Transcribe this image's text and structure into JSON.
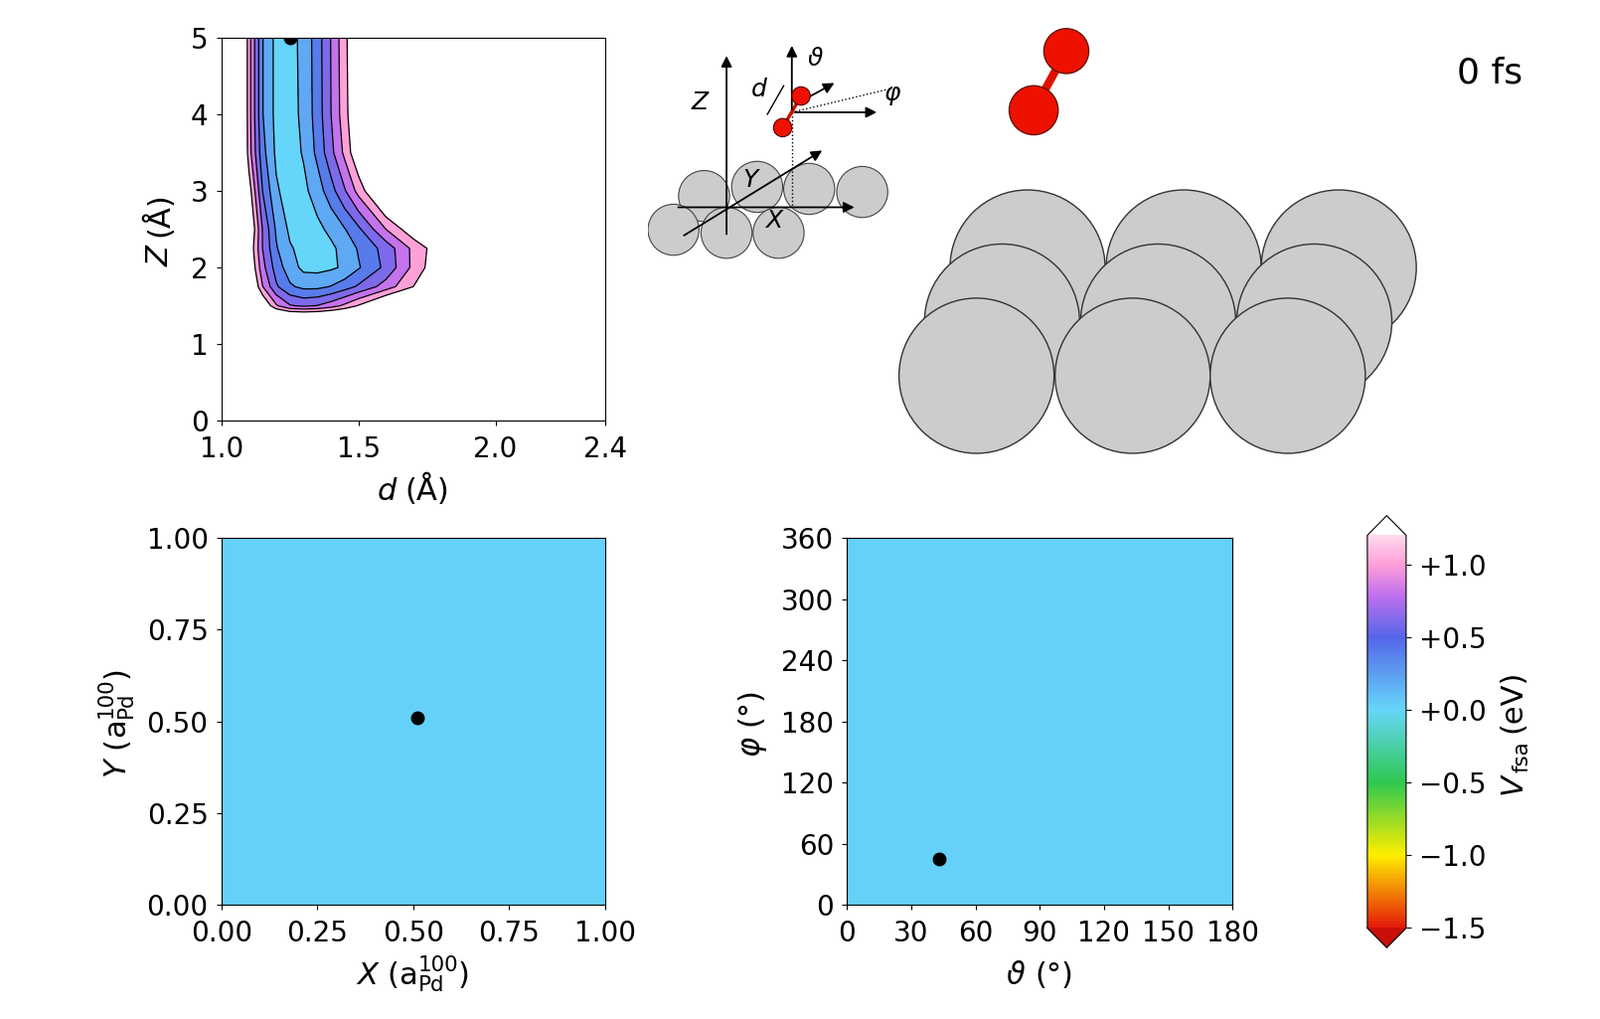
{
  "chart_data": [
    {
      "type": "contour",
      "x": [
        1.0,
        1.05,
        1.1,
        1.15,
        1.2,
        1.25,
        1.3,
        1.35,
        1.4,
        1.45,
        1.5,
        1.6,
        1.7,
        1.8,
        2.4
      ],
      "y": [
        0,
        1.0,
        1.25,
        1.5,
        1.75,
        2.0,
        2.25,
        2.5,
        3.0,
        3.5,
        4.0,
        5.0
      ],
      "values": [
        [
          2.0,
          2.0,
          2.0,
          2.0,
          2.0,
          2.0,
          2.0,
          2.0,
          2.0,
          2.0,
          2.0,
          2.0,
          2.0,
          2.0,
          2.0
        ],
        [
          2.0,
          2.0,
          2.0,
          2.0,
          2.0,
          2.0,
          2.0,
          2.0,
          2.0,
          2.0,
          2.0,
          2.0,
          2.0,
          2.0,
          2.0
        ],
        [
          2.0,
          2.0,
          2.0,
          2.0,
          2.0,
          2.0,
          2.0,
          2.0,
          2.0,
          2.0,
          2.0,
          2.0,
          2.0,
          2.0,
          2.0
        ],
        [
          2.0,
          2.0,
          2.0,
          1.35,
          0.93,
          0.72,
          0.67,
          0.71,
          0.81,
          0.95,
          1.12,
          1.47,
          1.8,
          2.0,
          2.0
        ],
        [
          2.0,
          2.0,
          1.51,
          0.91,
          0.53,
          0.33,
          0.25,
          0.25,
          0.31,
          0.41,
          0.53,
          0.79,
          1.1,
          1.4,
          2.0
        ],
        [
          2.0,
          2.0,
          1.37,
          0.77,
          0.41,
          0.19,
          0.05,
          0.04,
          0.07,
          0.13,
          0.28,
          0.55,
          0.95,
          1.3,
          2.0
        ],
        [
          2.0,
          2.0,
          1.3,
          0.7,
          0.32,
          0.12,
          0.04,
          0.02,
          0.06,
          0.17,
          0.32,
          0.58,
          0.95,
          1.25,
          2.0
        ],
        [
          2.0,
          2.0,
          1.4,
          0.69,
          0.27,
          0.06,
          0.01,
          0.05,
          0.15,
          0.29,
          0.46,
          0.9,
          1.25,
          1.6,
          2.0
        ],
        [
          2.0,
          2.0,
          1.22,
          0.5,
          0.13,
          0.0,
          0.05,
          0.2,
          0.42,
          0.68,
          0.97,
          1.52,
          2.0,
          2.0,
          2.0
        ],
        [
          2.0,
          2.0,
          1.0,
          0.37,
          0.06,
          0.01,
          0.12,
          0.35,
          0.64,
          0.95,
          1.3,
          1.95,
          2.0,
          2.0,
          2.0
        ],
        [
          2.0,
          2.0,
          0.99,
          0.31,
          0.04,
          0.02,
          0.15,
          0.39,
          0.7,
          1.02,
          1.37,
          2.0,
          2.0,
          2.0,
          2.0
        ],
        [
          2.0,
          2.0,
          0.99,
          0.31,
          0.04,
          0.03,
          0.16,
          0.4,
          0.71,
          1.04,
          1.39,
          2.0,
          2.0,
          2.0,
          2.0
        ]
      ],
      "levels": [
        -0.1,
        0.1,
        0.3,
        0.5,
        0.7,
        0.9,
        1.1
      ],
      "xlim": [
        1.0,
        2.4
      ],
      "ylim": [
        0,
        5
      ],
      "xticks": [
        1.0,
        1.5,
        2.0,
        2.4
      ],
      "yticks": [
        0,
        1,
        2,
        3,
        4,
        5
      ],
      "xlabel": [
        {
          "text": "d"
        },
        {
          "text": "(Å)"
        }
      ],
      "ylabel": [
        {
          "text": "Z"
        },
        {
          "text": "(Å)"
        }
      ],
      "point": {
        "x": 1.25,
        "y": 5.0
      }
    },
    {
      "type": "heatmap",
      "x": [
        0,
        1
      ],
      "y": [
        0,
        1
      ],
      "values": [
        [
          0.02,
          0.02
        ],
        [
          0.02,
          0.02
        ]
      ],
      "xlim": [
        0,
        1
      ],
      "ylim": [
        0,
        1
      ],
      "xticks": [
        {
          "value": 0,
          "label": "0.00"
        },
        {
          "value": 0.25,
          "label": "0.25"
        },
        {
          "value": 0.5,
          "label": "0.50"
        },
        {
          "value": 0.75,
          "label": "0.75"
        },
        {
          "value": 1,
          "label": "1.00"
        }
      ],
      "yticks": [
        {
          "value": 0,
          "label": "0.00"
        },
        {
          "value": 0.25,
          "label": "0.25"
        },
        {
          "value": 0.5,
          "label": "0.50"
        },
        {
          "value": 0.75,
          "label": "0.75"
        },
        {
          "value": 1,
          "label": "1.00"
        }
      ],
      "xlabel": [
        {
          "text": "X"
        },
        {
          "text": "("
        },
        {
          "text": "a",
          "sub": "Pd",
          "sup": "100"
        },
        {
          "text": ")"
        }
      ],
      "ylabel": [
        {
          "text": "Y"
        },
        {
          "text": "("
        },
        {
          "text": "a",
          "sub": "Pd",
          "sup": "100"
        },
        {
          "text": ")"
        }
      ],
      "point": {
        "x": 0.51,
        "y": 0.51
      }
    },
    {
      "type": "heatmap",
      "x": [
        0,
        180
      ],
      "y": [
        0,
        360
      ],
      "values": [
        [
          0.02,
          0.02
        ],
        [
          0.02,
          0.02
        ]
      ],
      "xlim": [
        0,
        180
      ],
      "ylim": [
        0,
        360
      ],
      "xticks": [
        0,
        30,
        60,
        90,
        120,
        150,
        180
      ],
      "yticks": [
        0,
        60,
        120,
        180,
        240,
        300,
        360
      ],
      "xlabel": [
        {
          "text": "ϑ"
        },
        {
          "text": "(°)"
        }
      ],
      "ylabel": [
        {
          "text": "φ"
        },
        {
          "text": "(°)"
        }
      ],
      "point": {
        "x": 43,
        "y": 45
      }
    }
  ],
  "colorbar": {
    "range": [
      -1.5,
      1.2
    ],
    "ticks": [
      {
        "value": -1.5,
        "label": "−1.5"
      },
      {
        "value": -1.0,
        "label": "−1.0"
      },
      {
        "value": -0.5,
        "label": "−0.5"
      },
      {
        "value": 0.0,
        "label": "+0.0"
      },
      {
        "value": 0.5,
        "label": "+0.5"
      },
      {
        "value": 1.0,
        "label": "+1.0"
      }
    ],
    "label": [
      {
        "text": "V",
        "sub": "fsa"
      },
      {
        "text": "(eV)"
      }
    ]
  },
  "schematic": {
    "labels": {
      "Z": "Z",
      "Y": "Y",
      "X": "X",
      "d": "d",
      "theta": "ϑ",
      "phi": "φ"
    }
  },
  "time_label": "0 fs"
}
